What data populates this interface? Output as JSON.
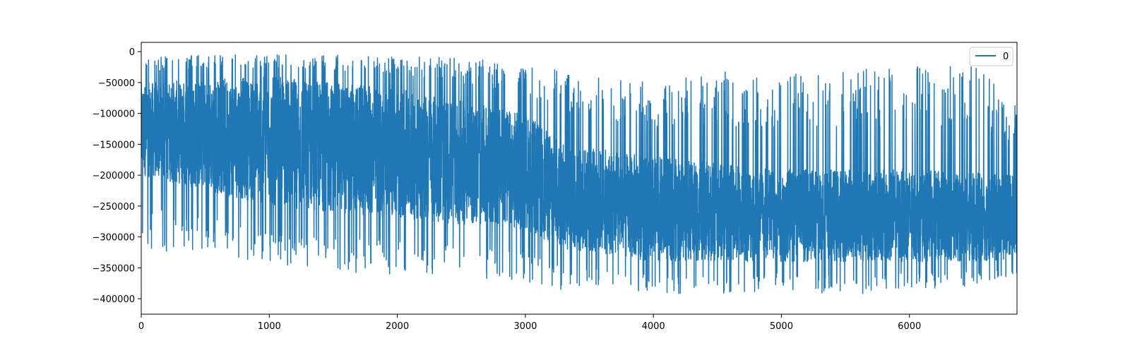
{
  "chart_data": {
    "type": "line",
    "title": "",
    "xlabel": "",
    "ylabel": "",
    "xlim": [
      0,
      6840
    ],
    "ylim": [
      -425000,
      15000
    ],
    "x_ticks": [
      0,
      1000,
      2000,
      3000,
      4000,
      5000,
      6000
    ],
    "y_ticks": [
      0,
      -50000,
      -100000,
      -150000,
      -200000,
      -250000,
      -300000,
      -350000,
      -400000
    ],
    "x_tick_labels": [
      "0",
      "1000",
      "2000",
      "3000",
      "4000",
      "5000",
      "6000"
    ],
    "y_tick_labels": [
      "0",
      "−50000",
      "−100000",
      "−150000",
      "−200000",
      "−250000",
      "−300000",
      "−350000",
      "−400000"
    ],
    "grid": false,
    "legend": {
      "position": "top-right",
      "entries": [
        "0"
      ]
    },
    "colors": {
      "series": "#1f77b4",
      "axes": "#000000",
      "legend_border": "#cccccc"
    },
    "series": [
      {
        "name": "0",
        "note_count": 6840,
        "envelope": [
          {
            "x": 0,
            "upper": -5000,
            "lower": -330000
          },
          {
            "x": 500,
            "upper": -5000,
            "lower": -320000
          },
          {
            "x": 1000,
            "upper": -5000,
            "lower": -345000
          },
          {
            "x": 1500,
            "upper": -5000,
            "lower": -360000
          },
          {
            "x": 2000,
            "upper": -8000,
            "lower": -360000
          },
          {
            "x": 2500,
            "upper": -10000,
            "lower": -365000
          },
          {
            "x": 3000,
            "upper": -20000,
            "lower": -370000
          },
          {
            "x": 3200,
            "upper": -20000,
            "lower": -390000
          },
          {
            "x": 3500,
            "upper": -40000,
            "lower": -385000
          },
          {
            "x": 4000,
            "upper": -50000,
            "lower": -390000
          },
          {
            "x": 4500,
            "upper": -30000,
            "lower": -395000
          },
          {
            "x": 5000,
            "upper": -35000,
            "lower": -385000
          },
          {
            "x": 5500,
            "upper": -30000,
            "lower": -395000
          },
          {
            "x": 6000,
            "upper": -20000,
            "lower": -385000
          },
          {
            "x": 6500,
            "upper": -20000,
            "lower": -380000
          },
          {
            "x": 6840,
            "upper": -85000,
            "lower": -360000
          }
        ],
        "body": [
          {
            "x": 0,
            "upper": -50000,
            "lower": -200000
          },
          {
            "x": 1000,
            "upper": -40000,
            "lower": -250000
          },
          {
            "x": 2000,
            "upper": -60000,
            "lower": -270000
          },
          {
            "x": 3000,
            "upper": -100000,
            "lower": -290000
          },
          {
            "x": 3300,
            "upper": -150000,
            "lower": -320000
          },
          {
            "x": 4000,
            "upper": -170000,
            "lower": -340000
          },
          {
            "x": 5000,
            "upper": -190000,
            "lower": -340000
          },
          {
            "x": 6000,
            "upper": -190000,
            "lower": -340000
          },
          {
            "x": 6840,
            "upper": -200000,
            "lower": -340000
          }
        ]
      }
    ]
  }
}
